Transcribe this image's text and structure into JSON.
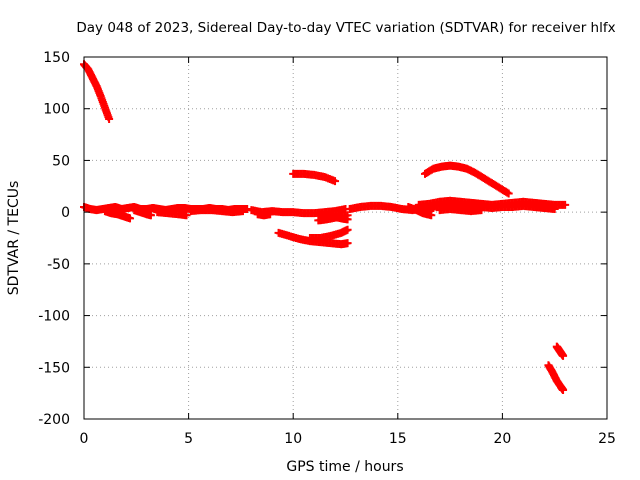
{
  "chart_data": {
    "type": "scatter",
    "title": "Day 048 of 2023, Sidereal Day-to-day VTEC variation (SDTVAR) for receiver hlfx",
    "xlabel": "GPS time / hours",
    "ylabel": "SDTVAR / TECUs",
    "xlim": [
      0,
      25
    ],
    "ylim": [
      -200,
      150
    ],
    "xticks": [
      0,
      5,
      10,
      15,
      20,
      25
    ],
    "yticks": [
      150,
      100,
      50,
      0,
      -50,
      -100,
      -150,
      -200
    ],
    "grid": true,
    "grid_style": "dotted",
    "marker": "+",
    "color": "#ff0000",
    "series": [
      {
        "segments": [
          [
            [
              0.0,
              143
            ],
            [
              0.2,
              138
            ],
            [
              0.4,
              130
            ],
            [
              0.6,
              122
            ],
            [
              0.8,
              112
            ],
            [
              1.0,
              101
            ],
            [
              1.2,
              90
            ]
          ],
          [
            [
              0.0,
              5
            ],
            [
              0.3,
              3
            ],
            [
              0.6,
              2
            ],
            [
              0.9,
              3
            ],
            [
              1.2,
              4
            ],
            [
              1.5,
              5
            ],
            [
              1.8,
              3
            ],
            [
              2.1,
              4
            ],
            [
              2.4,
              5
            ],
            [
              2.7,
              3
            ],
            [
              3.0,
              3
            ],
            [
              3.3,
              4
            ],
            [
              3.6,
              3
            ],
            [
              3.9,
              2
            ],
            [
              4.2,
              3
            ],
            [
              4.5,
              4
            ],
            [
              4.8,
              4
            ],
            [
              5.1,
              3
            ],
            [
              5.4,
              3
            ],
            [
              5.7,
              3
            ],
            [
              6.0,
              4
            ],
            [
              6.3,
              3
            ],
            [
              6.6,
              3
            ],
            [
              6.9,
              2
            ],
            [
              7.2,
              3
            ],
            [
              7.5,
              3
            ],
            [
              7.8,
              3
            ]
          ],
          [
            [
              1.0,
              1
            ],
            [
              1.3,
              -1
            ],
            [
              1.6,
              -2
            ],
            [
              1.9,
              -4
            ],
            [
              2.2,
              -6
            ]
          ],
          [
            [
              2.4,
              2
            ],
            [
              2.7,
              0
            ],
            [
              3.0,
              -2
            ],
            [
              3.2,
              -3
            ]
          ],
          [
            [
              3.5,
              0
            ],
            [
              4.0,
              -1
            ],
            [
              4.5,
              -2
            ],
            [
              4.9,
              -3
            ]
          ],
          [
            [
              5.1,
              1
            ],
            [
              5.6,
              2
            ],
            [
              6.1,
              2
            ],
            [
              6.6,
              1
            ],
            [
              7.1,
              0
            ],
            [
              7.6,
              1
            ]
          ],
          [
            [
              8.0,
              2
            ],
            [
              8.5,
              0
            ],
            [
              9.0,
              1
            ],
            [
              9.5,
              0
            ],
            [
              10.0,
              0
            ],
            [
              10.5,
              -1
            ],
            [
              11.0,
              -1
            ],
            [
              11.5,
              0
            ],
            [
              12.0,
              1
            ],
            [
              12.5,
              3
            ]
          ],
          [
            [
              8.3,
              -2
            ],
            [
              8.6,
              -3
            ],
            [
              8.9,
              -2
            ]
          ],
          [
            [
              10.0,
              37
            ],
            [
              10.5,
              37
            ],
            [
              11.0,
              36
            ],
            [
              11.5,
              34
            ],
            [
              12.0,
              30
            ]
          ],
          [
            [
              9.3,
              -20
            ],
            [
              9.8,
              -23
            ],
            [
              10.3,
              -26
            ],
            [
              10.8,
              -28
            ],
            [
              11.3,
              -29
            ],
            [
              11.8,
              -30
            ],
            [
              12.3,
              -31
            ],
            [
              12.6,
              -30
            ]
          ],
          [
            [
              10.8,
              -25
            ],
            [
              11.3,
              -25
            ],
            [
              11.8,
              -23
            ],
            [
              12.3,
              -20
            ],
            [
              12.6,
              -17
            ]
          ],
          [
            [
              11.3,
              -2
            ],
            [
              11.8,
              -4
            ],
            [
              12.3,
              -6
            ],
            [
              12.6,
              -7
            ]
          ],
          [
            [
              11.2,
              -8
            ],
            [
              11.6,
              -7
            ],
            [
              12.1,
              -5
            ],
            [
              12.6,
              -3
            ]
          ],
          [
            [
              12.7,
              3
            ],
            [
              13.2,
              5
            ],
            [
              13.7,
              6
            ],
            [
              14.2,
              6
            ],
            [
              14.7,
              5
            ],
            [
              15.2,
              3
            ],
            [
              15.7,
              2
            ],
            [
              16.2,
              3
            ],
            [
              16.7,
              4
            ]
          ],
          [
            [
              15.5,
              5
            ],
            [
              15.9,
              2
            ],
            [
              16.2,
              -1
            ],
            [
              16.6,
              -3
            ]
          ],
          [
            [
              16.3,
              37
            ],
            [
              16.7,
              42
            ],
            [
              17.1,
              44
            ],
            [
              17.5,
              45
            ],
            [
              17.9,
              44
            ],
            [
              18.3,
              42
            ],
            [
              18.7,
              38
            ],
            [
              19.1,
              33
            ],
            [
              19.5,
              28
            ],
            [
              19.9,
              23
            ],
            [
              20.3,
              18
            ]
          ],
          [
            [
              16.0,
              7
            ],
            [
              16.5,
              8
            ],
            [
              17.0,
              10
            ],
            [
              17.5,
              11
            ],
            [
              18.0,
              10
            ],
            [
              18.5,
              9
            ],
            [
              19.0,
              8
            ],
            [
              19.5,
              7
            ],
            [
              20.0,
              8
            ],
            [
              20.5,
              9
            ],
            [
              21.0,
              10
            ],
            [
              21.5,
              9
            ],
            [
              22.0,
              8
            ],
            [
              22.5,
              7
            ],
            [
              23.0,
              7
            ]
          ],
          [
            [
              16.0,
              4
            ],
            [
              16.5,
              5
            ],
            [
              17.0,
              6
            ],
            [
              17.5,
              6
            ],
            [
              18.0,
              5
            ],
            [
              18.5,
              4
            ],
            [
              19.0,
              5
            ],
            [
              19.5,
              4
            ],
            [
              20.0,
              5
            ],
            [
              20.5,
              5
            ],
            [
              21.0,
              6
            ],
            [
              21.5,
              5
            ],
            [
              22.0,
              4
            ],
            [
              22.5,
              3
            ]
          ],
          [
            [
              17.0,
              2
            ],
            [
              17.5,
              3
            ],
            [
              18.0,
              2
            ],
            [
              18.5,
              1
            ],
            [
              19.0,
              2
            ]
          ],
          [
            [
              22.2,
              -148
            ],
            [
              22.4,
              -155
            ],
            [
              22.6,
              -163
            ],
            [
              22.8,
              -169
            ],
            [
              22.9,
              -172
            ]
          ],
          [
            [
              22.6,
              -130
            ],
            [
              22.7,
              -133
            ],
            [
              22.8,
              -136
            ],
            [
              22.9,
              -139
            ]
          ]
        ]
      }
    ]
  }
}
